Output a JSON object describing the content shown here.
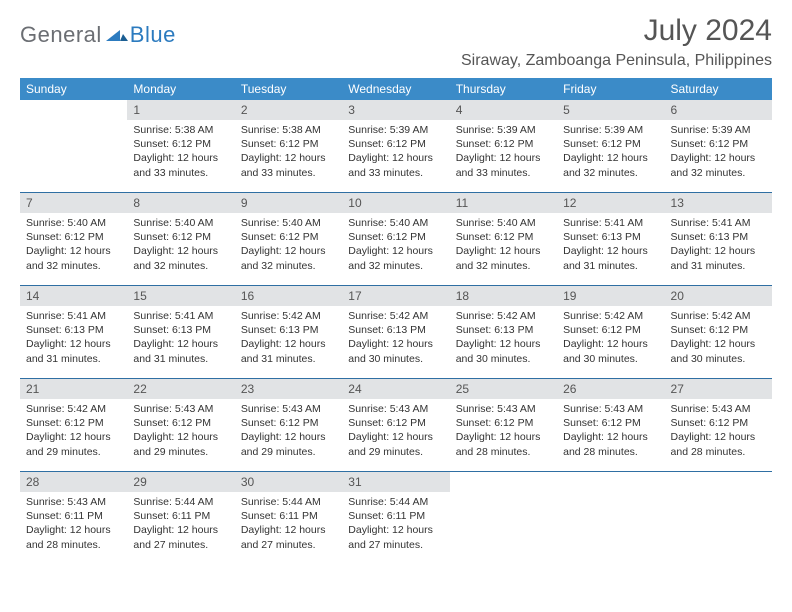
{
  "brand": {
    "general": "General",
    "blue": "Blue"
  },
  "title": "July 2024",
  "location": "Siraway, Zamboanga Peninsula, Philippines",
  "colors": {
    "header_bg": "#3b8bc8",
    "header_text": "#ffffff",
    "daynum_bg": "#e1e3e5",
    "week_border": "#2f6fa3",
    "body_text": "#333333",
    "title_text": "#555555"
  },
  "days_of_week": [
    "Sunday",
    "Monday",
    "Tuesday",
    "Wednesday",
    "Thursday",
    "Friday",
    "Saturday"
  ],
  "first_weekday_index": 1,
  "days": [
    {
      "n": 1,
      "sunrise": "5:38 AM",
      "sunset": "6:12 PM",
      "daylight": "12 hours and 33 minutes."
    },
    {
      "n": 2,
      "sunrise": "5:38 AM",
      "sunset": "6:12 PM",
      "daylight": "12 hours and 33 minutes."
    },
    {
      "n": 3,
      "sunrise": "5:39 AM",
      "sunset": "6:12 PM",
      "daylight": "12 hours and 33 minutes."
    },
    {
      "n": 4,
      "sunrise": "5:39 AM",
      "sunset": "6:12 PM",
      "daylight": "12 hours and 33 minutes."
    },
    {
      "n": 5,
      "sunrise": "5:39 AM",
      "sunset": "6:12 PM",
      "daylight": "12 hours and 32 minutes."
    },
    {
      "n": 6,
      "sunrise": "5:39 AM",
      "sunset": "6:12 PM",
      "daylight": "12 hours and 32 minutes."
    },
    {
      "n": 7,
      "sunrise": "5:40 AM",
      "sunset": "6:12 PM",
      "daylight": "12 hours and 32 minutes."
    },
    {
      "n": 8,
      "sunrise": "5:40 AM",
      "sunset": "6:12 PM",
      "daylight": "12 hours and 32 minutes."
    },
    {
      "n": 9,
      "sunrise": "5:40 AM",
      "sunset": "6:12 PM",
      "daylight": "12 hours and 32 minutes."
    },
    {
      "n": 10,
      "sunrise": "5:40 AM",
      "sunset": "6:12 PM",
      "daylight": "12 hours and 32 minutes."
    },
    {
      "n": 11,
      "sunrise": "5:40 AM",
      "sunset": "6:12 PM",
      "daylight": "12 hours and 32 minutes."
    },
    {
      "n": 12,
      "sunrise": "5:41 AM",
      "sunset": "6:13 PM",
      "daylight": "12 hours and 31 minutes."
    },
    {
      "n": 13,
      "sunrise": "5:41 AM",
      "sunset": "6:13 PM",
      "daylight": "12 hours and 31 minutes."
    },
    {
      "n": 14,
      "sunrise": "5:41 AM",
      "sunset": "6:13 PM",
      "daylight": "12 hours and 31 minutes."
    },
    {
      "n": 15,
      "sunrise": "5:41 AM",
      "sunset": "6:13 PM",
      "daylight": "12 hours and 31 minutes."
    },
    {
      "n": 16,
      "sunrise": "5:42 AM",
      "sunset": "6:13 PM",
      "daylight": "12 hours and 31 minutes."
    },
    {
      "n": 17,
      "sunrise": "5:42 AM",
      "sunset": "6:13 PM",
      "daylight": "12 hours and 30 minutes."
    },
    {
      "n": 18,
      "sunrise": "5:42 AM",
      "sunset": "6:13 PM",
      "daylight": "12 hours and 30 minutes."
    },
    {
      "n": 19,
      "sunrise": "5:42 AM",
      "sunset": "6:12 PM",
      "daylight": "12 hours and 30 minutes."
    },
    {
      "n": 20,
      "sunrise": "5:42 AM",
      "sunset": "6:12 PM",
      "daylight": "12 hours and 30 minutes."
    },
    {
      "n": 21,
      "sunrise": "5:42 AM",
      "sunset": "6:12 PM",
      "daylight": "12 hours and 29 minutes."
    },
    {
      "n": 22,
      "sunrise": "5:43 AM",
      "sunset": "6:12 PM",
      "daylight": "12 hours and 29 minutes."
    },
    {
      "n": 23,
      "sunrise": "5:43 AM",
      "sunset": "6:12 PM",
      "daylight": "12 hours and 29 minutes."
    },
    {
      "n": 24,
      "sunrise": "5:43 AM",
      "sunset": "6:12 PM",
      "daylight": "12 hours and 29 minutes."
    },
    {
      "n": 25,
      "sunrise": "5:43 AM",
      "sunset": "6:12 PM",
      "daylight": "12 hours and 28 minutes."
    },
    {
      "n": 26,
      "sunrise": "5:43 AM",
      "sunset": "6:12 PM",
      "daylight": "12 hours and 28 minutes."
    },
    {
      "n": 27,
      "sunrise": "5:43 AM",
      "sunset": "6:12 PM",
      "daylight": "12 hours and 28 minutes."
    },
    {
      "n": 28,
      "sunrise": "5:43 AM",
      "sunset": "6:11 PM",
      "daylight": "12 hours and 28 minutes."
    },
    {
      "n": 29,
      "sunrise": "5:44 AM",
      "sunset": "6:11 PM",
      "daylight": "12 hours and 27 minutes."
    },
    {
      "n": 30,
      "sunrise": "5:44 AM",
      "sunset": "6:11 PM",
      "daylight": "12 hours and 27 minutes."
    },
    {
      "n": 31,
      "sunrise": "5:44 AM",
      "sunset": "6:11 PM",
      "daylight": "12 hours and 27 minutes."
    }
  ],
  "labels": {
    "sunrise": "Sunrise:",
    "sunset": "Sunset:",
    "daylight": "Daylight:"
  }
}
